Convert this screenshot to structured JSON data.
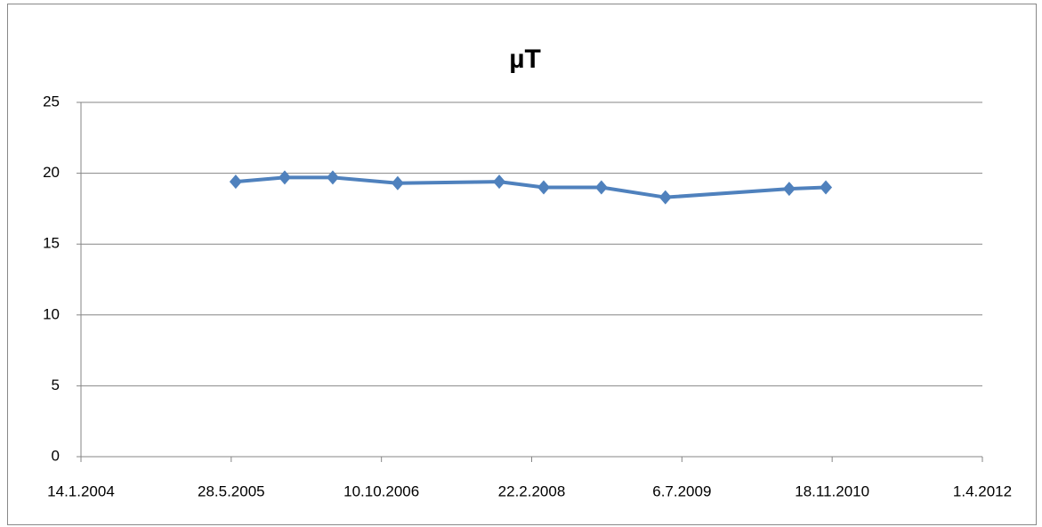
{
  "chart_data": {
    "type": "line",
    "title": "µT",
    "x": [
      "2005-06-12",
      "2005-11-22",
      "2006-05-01",
      "2006-12-03",
      "2007-11-06",
      "2008-04-02",
      "2008-10-11",
      "2009-05-12",
      "2010-06-28",
      "2010-10-28"
    ],
    "series": [
      {
        "name": "µT",
        "color": "#4f81bd",
        "values": [
          19.4,
          19.7,
          19.7,
          19.3,
          19.4,
          19.0,
          19.0,
          18.3,
          18.9,
          19.0
        ]
      }
    ],
    "xlim": [
      "2004-01-14",
      "2012-04-01"
    ],
    "xticks": [
      {
        "value": "2004-01-14",
        "label": "14.1.2004"
      },
      {
        "value": "2005-05-28",
        "label": "28.5.2005"
      },
      {
        "value": "2006-10-10",
        "label": "10.10.2006"
      },
      {
        "value": "2008-02-22",
        "label": "22.2.2008"
      },
      {
        "value": "2009-07-06",
        "label": "6.7.2009"
      },
      {
        "value": "2010-11-18",
        "label": "18.11.2010"
      },
      {
        "value": "2012-04-01",
        "label": "1.4.2012"
      }
    ],
    "ylim": [
      0,
      25
    ],
    "yticks": [
      0,
      5,
      10,
      15,
      20,
      25
    ],
    "grid": true
  }
}
